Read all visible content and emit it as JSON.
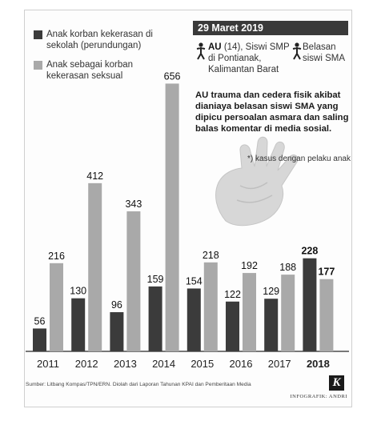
{
  "legend": {
    "series1": "Anak korban kekerasan di sekolah (perundungan)",
    "series2": "Anak sebagai korban kekerasan seksual"
  },
  "case": {
    "date": "29 Maret 2019",
    "victim_name": "AU",
    "victim_desc": "(14), Siswi SMP di Pontianak, Kalimantan Barat",
    "perpetrator": "Belasan siswi SMA",
    "story": "AU trauma dan cedera fisik akibat dianiaya belasan siswi SMA yang dipicu persoalan asmara dan saling balas komentar di media sosial.",
    "footnote": "*) kasus dengan pelaku anak"
  },
  "source": "Sumber: Litbang Kompas/TPN/ERN. Diolah dari Laporan Tahunan KPAI dan Pemberitaan Media",
  "credit": "INFOGRAFIK: ANDRI",
  "logo": "K",
  "colors": {
    "dark": "#3b3b3b",
    "light": "#a9a9a9",
    "date_bg": "#3a3a3a",
    "hand": "#b9b9b9"
  },
  "icons": [
    "person-icon",
    "hand-icon",
    "kompas-logo-icon"
  ],
  "chart_data": {
    "type": "bar",
    "categories": [
      "2011",
      "2012",
      "2013",
      "2014",
      "2015",
      "2016",
      "2017",
      "2018"
    ],
    "series": [
      {
        "name": "Anak korban kekerasan di sekolah (perundungan)",
        "values": [
          56,
          130,
          96,
          159,
          154,
          122,
          129,
          228
        ]
      },
      {
        "name": "Anak sebagai korban kekerasan seksual",
        "values": [
          216,
          412,
          343,
          656,
          218,
          192,
          188,
          177
        ]
      }
    ],
    "highlight_category": "2018",
    "ylim": [
      0,
      700
    ],
    "grid": false,
    "legend_position": "top-left"
  }
}
